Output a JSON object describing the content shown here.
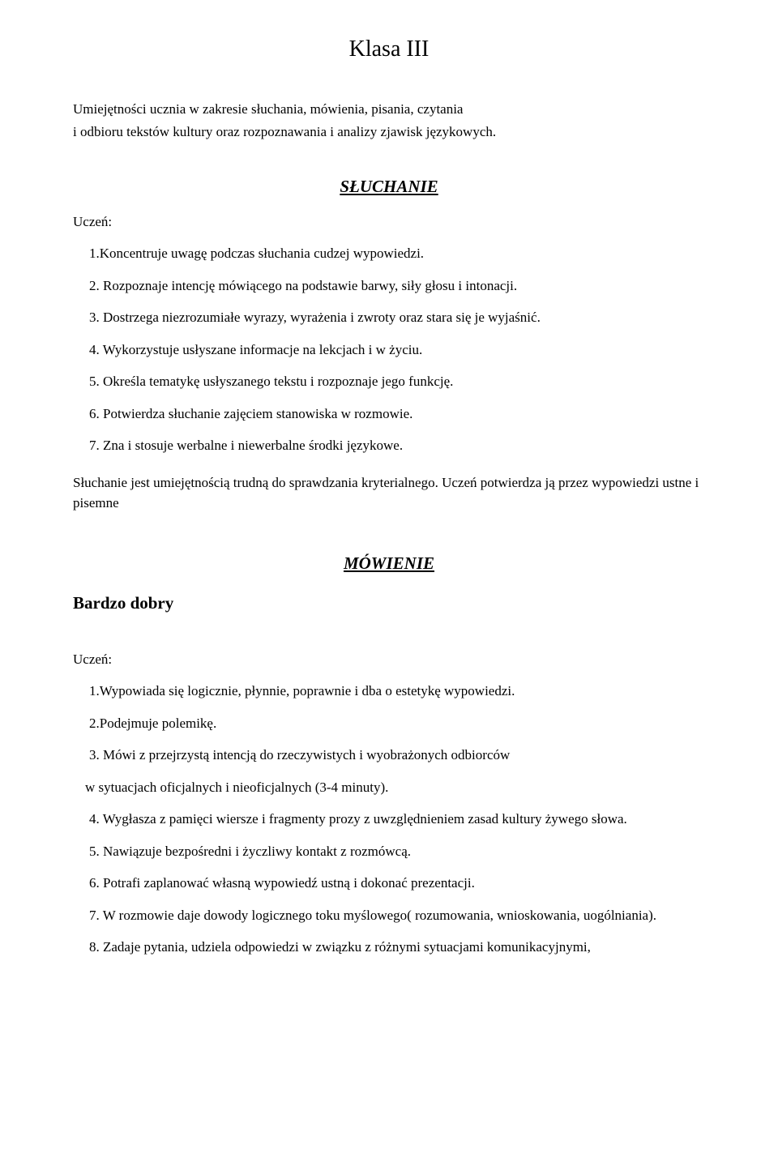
{
  "title": "Klasa III",
  "intro_line1": "Umiejętności ucznia w zakresie słuchania, mówienia, pisania, czytania",
  "intro_line2": "i odbioru tekstów kultury oraz rozpoznawania i analizy zjawisk językowych.",
  "sluchanie": {
    "header": "SŁUCHANIE",
    "student": "Uczeń:",
    "items": [
      "1.Koncentruje uwagę podczas słuchania cudzej wypowiedzi.",
      "2. Rozpoznaje intencję mówiącego na podstawie barwy, siły głosu i intonacji.",
      "3. Dostrzega niezrozumiałe wyrazy, wyrażenia i zwroty oraz stara się je wyjaśnić.",
      "4. Wykorzystuje usłyszane informacje na lekcjach i w życiu.",
      "5. Określa tematykę usłyszanego tekstu i rozpoznaje jego funkcję.",
      "6. Potwierdza słuchanie zajęciem stanowiska w rozmowie.",
      "7. Zna i stosuje werbalne i niewerbalne środki językowe."
    ],
    "afterText": "Słuchanie jest umiejętnością trudną do sprawdzania kryterialnego. Uczeń potwierdza ją przez wypowiedzi ustne i pisemne"
  },
  "mowienie": {
    "header": "MÓWIENIE",
    "grade": "Bardzo dobry",
    "student": "Uczeń:",
    "items": [
      "1.Wypowiada się logicznie, płynnie, poprawnie i dba o estetykę wypowiedzi.",
      "2.Podejmuje polemikę.",
      "3. Mówi z przejrzystą intencją do rzeczywistych i wyobrażonych odbiorców"
    ],
    "item3b": "w sytuacjach oficjalnych i nieoficjalnych (3-4 minuty).",
    "items2": [
      "4. Wygłasza z pamięci wiersze i fragmenty prozy z uwzględnieniem zasad kultury żywego słowa.",
      "5. Nawiązuje bezpośredni i życzliwy kontakt z rozmówcą.",
      "6. Potrafi zaplanować własną wypowiedź ustną i dokonać prezentacji.",
      "7. W rozmowie daje dowody logicznego toku myślowego( rozumowania, wnioskowania, uogólniania).",
      "8. Zadaje pytania, udziela odpowiedzi w związku z różnymi sytuacjami komunikacyjnymi,"
    ]
  }
}
